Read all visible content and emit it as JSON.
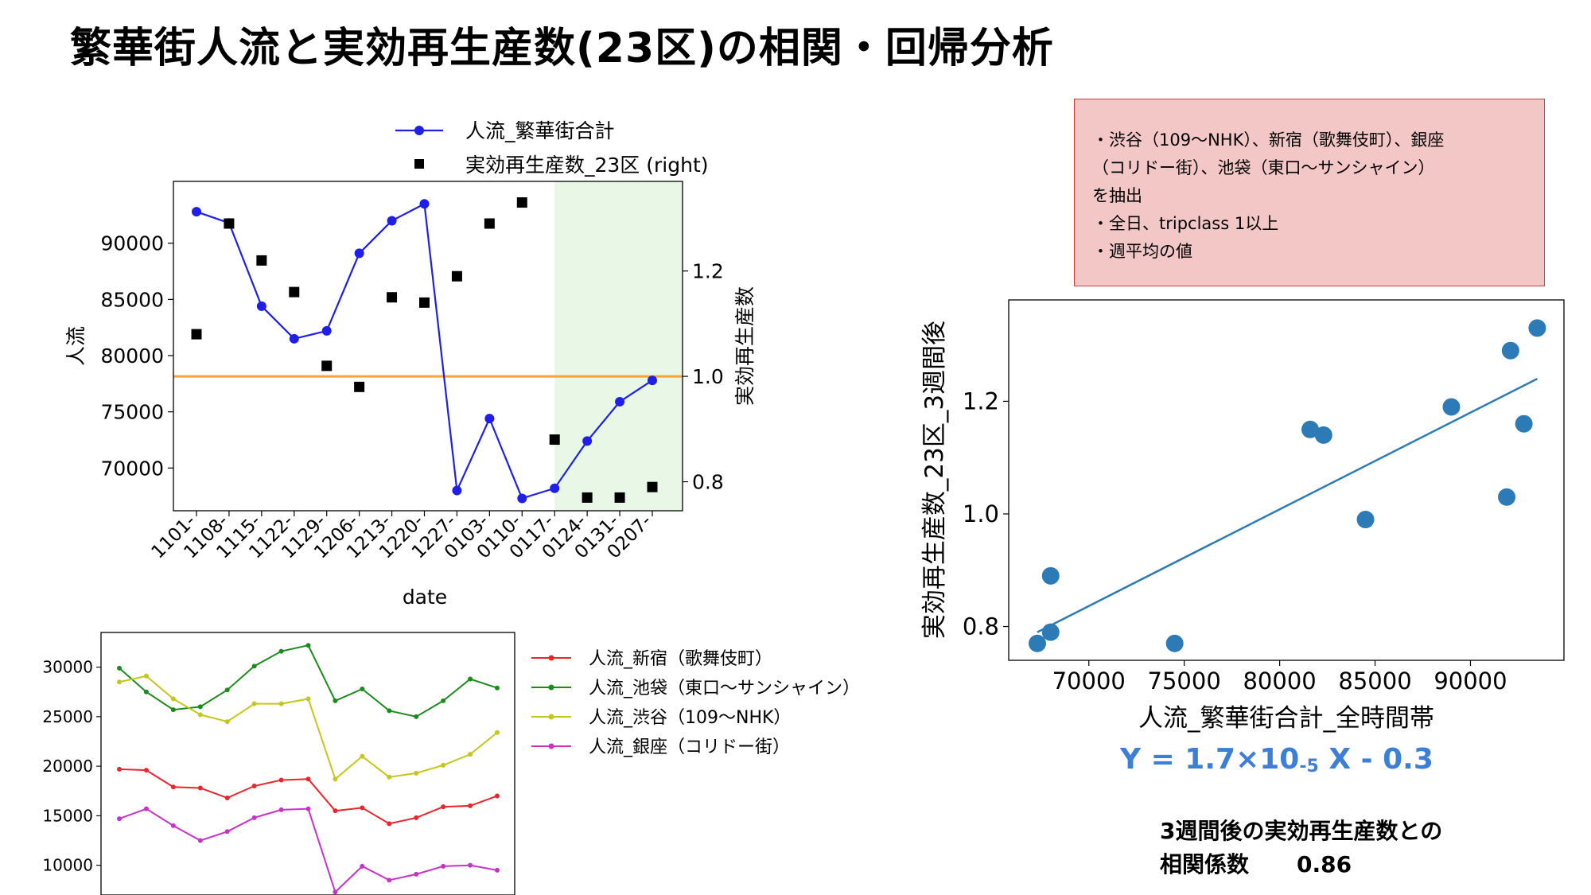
{
  "title": "繁華街人流と実効再生産数(23区)の相関・回帰分析",
  "notes": {
    "lines": [
      "・渋谷（109〜NHK）、新宿（歌舞伎町）、銀座",
      "（コリドー街）、池袋（東口〜サンシャイン）",
      "を抽出",
      "・全日、tripclass 1以上",
      "・週平均の値"
    ]
  },
  "equation": {
    "prefix": "Y = 1.7×10",
    "exponent": "-5",
    "suffix": " X - 0.3"
  },
  "correlation": {
    "line1": "3週間後の実効再生産数との",
    "label": "相関係数",
    "value": "0.86"
  },
  "chart_data": [
    {
      "id": "main",
      "type": "line",
      "xlabel": "date",
      "ylabel_left": "人流",
      "ylabel_right": "実効再生産数",
      "categories": [
        "1101-",
        "1108-",
        "1115-",
        "1122-",
        "1129-",
        "1206-",
        "1213-",
        "1220-",
        "1227-",
        "0103-",
        "0110-",
        "0117-",
        "0124-",
        "0131-",
        "0207-"
      ],
      "ylim_left": [
        66200,
        95500
      ],
      "yticks_left": [
        70000,
        75000,
        80000,
        85000,
        90000
      ],
      "ylim_right": [
        0.745,
        1.37
      ],
      "yticks_right": [
        0.8,
        1.0,
        1.2
      ],
      "highlight_range": [
        11,
        14
      ],
      "highlight_color": "#e8f7e6",
      "series": [
        {
          "name": "人流_繁華街合計",
          "kind": "line",
          "axis": "left",
          "color": "#1f1fe6",
          "values": [
            92800,
            91800,
            84400,
            81500,
            82200,
            89100,
            92000,
            93500,
            68000,
            74400,
            67300,
            68200,
            72400,
            75900,
            77800
          ]
        },
        {
          "name": "実効再生産数_23区 (right)",
          "kind": "square",
          "axis": "right",
          "color": "#000000",
          "values": [
            1.08,
            1.29,
            1.22,
            1.16,
            1.02,
            0.98,
            1.15,
            1.14,
            1.19,
            1.29,
            1.33,
            0.88,
            0.77,
            0.77,
            0.79
          ]
        }
      ],
      "hline": {
        "axis": "right",
        "value": 1.0,
        "color": "#f5a33a"
      }
    },
    {
      "id": "areas",
      "type": "line",
      "ylim": [
        7000,
        33500
      ],
      "yticks": [
        10000,
        15000,
        20000,
        25000,
        30000
      ],
      "series": [
        {
          "name": "人流_新宿（歌舞伎町）",
          "color": "#e8262b",
          "values": [
            19700,
            19600,
            17900,
            17800,
            16800,
            18000,
            18600,
            18700,
            15500,
            15800,
            14200,
            14800,
            15900,
            16000,
            17000
          ]
        },
        {
          "name": "人流_池袋（東口～サンシャイン）",
          "color": "#1b8c1b",
          "values": [
            29900,
            27500,
            25700,
            26000,
            27700,
            30100,
            31600,
            32200,
            26600,
            27800,
            25600,
            25000,
            26600,
            28800,
            27900
          ]
        },
        {
          "name": "人流_渋谷（109〜NHK）",
          "color": "#c5c51a",
          "values": [
            28500,
            29100,
            26800,
            25200,
            24500,
            26300,
            26300,
            26800,
            18700,
            21000,
            18900,
            19300,
            20100,
            21200,
            23400
          ]
        },
        {
          "name": "人流_銀座（コリドー街）",
          "color": "#c832c8",
          "values": [
            14700,
            15700,
            14000,
            12500,
            13400,
            14800,
            15600,
            15700,
            7300,
            9900,
            8500,
            9100,
            9900,
            10000,
            9500
          ]
        }
      ]
    },
    {
      "id": "scatter",
      "type": "scatter",
      "xlabel": "人流_繁華街合計_全時間帯",
      "ylabel": "実効再生産数_23区_3週間後",
      "xlim": [
        65800,
        94900
      ],
      "ylim": [
        0.74,
        1.38
      ],
      "xticks": [
        70000,
        75000,
        80000,
        85000,
        90000
      ],
      "yticks": [
        0.8,
        1.0,
        1.2
      ],
      "color": "#2c7bb6",
      "points": [
        {
          "x": 67300,
          "y": 0.77
        },
        {
          "x": 68000,
          "y": 0.79
        },
        {
          "x": 68000,
          "y": 0.89
        },
        {
          "x": 74500,
          "y": 0.77
        },
        {
          "x": 81600,
          "y": 1.15
        },
        {
          "x": 82300,
          "y": 1.14
        },
        {
          "x": 84500,
          "y": 0.99
        },
        {
          "x": 89000,
          "y": 1.19
        },
        {
          "x": 91900,
          "y": 1.03
        },
        {
          "x": 92100,
          "y": 1.29
        },
        {
          "x": 92800,
          "y": 1.16
        },
        {
          "x": 93500,
          "y": 1.33
        }
      ],
      "regression": {
        "x": [
          67300,
          93500
        ],
        "y": [
          0.79,
          1.24
        ]
      }
    }
  ]
}
